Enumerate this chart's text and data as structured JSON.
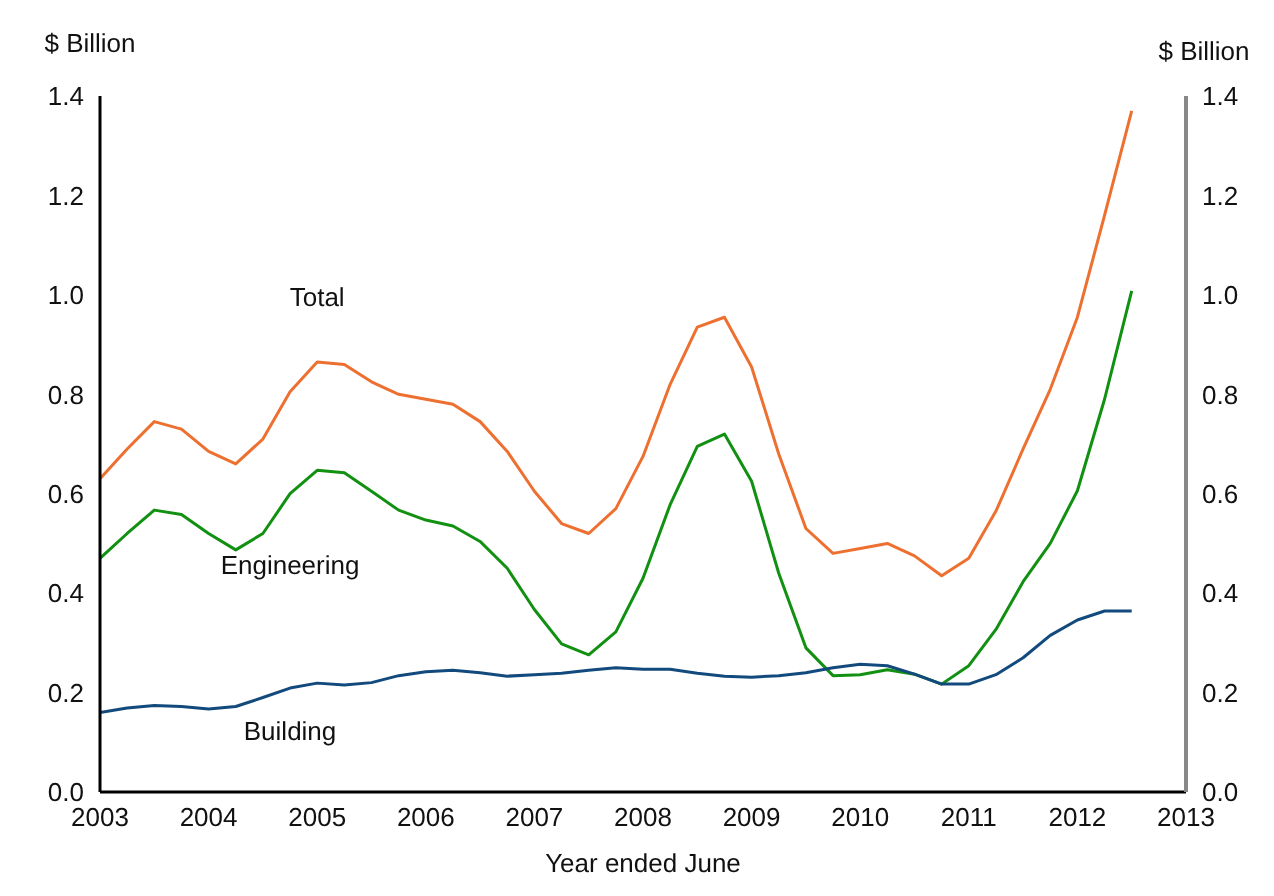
{
  "chart_data": {
    "type": "line",
    "xlabel": "Year ended June",
    "ylabel": "$ Billion",
    "y2label": "$ Billion",
    "x": [
      2003,
      2003.25,
      2003.5,
      2003.75,
      2004,
      2004.25,
      2004.5,
      2004.75,
      2005,
      2005.25,
      2005.5,
      2005.75,
      2006,
      2006.25,
      2006.5,
      2006.75,
      2007,
      2007.25,
      2007.5,
      2007.75,
      2008,
      2008.25,
      2008.5,
      2008.75,
      2009,
      2009.25,
      2009.5,
      2009.75,
      2010,
      2010.25,
      2010.5,
      2010.75,
      2011,
      2011.25,
      2011.5,
      2011.75,
      2012,
      2012.25,
      2012.5
    ],
    "series": [
      {
        "name": "Total",
        "color": "#ed7031",
        "values": [
          0.63,
          0.69,
          0.745,
          0.73,
          0.685,
          0.66,
          0.71,
          0.805,
          0.865,
          0.86,
          0.825,
          0.8,
          0.79,
          0.78,
          0.745,
          0.685,
          0.605,
          0.54,
          0.52,
          0.57,
          0.675,
          0.82,
          0.935,
          0.955,
          0.855,
          0.68,
          0.53,
          0.48,
          0.49,
          0.5,
          0.475,
          0.435,
          0.47,
          0.565,
          0.69,
          0.81,
          0.955,
          1.16,
          1.37
        ]
      },
      {
        "name": "Engineering",
        "color": "#119011",
        "values": [
          0.47,
          0.52,
          0.567,
          0.558,
          0.52,
          0.487,
          0.52,
          0.6,
          0.647,
          0.642,
          0.605,
          0.567,
          0.547,
          0.535,
          0.504,
          0.45,
          0.367,
          0.298,
          0.276,
          0.322,
          0.43,
          0.578,
          0.695,
          0.72,
          0.625,
          0.44,
          0.29,
          0.234,
          0.236,
          0.246,
          0.237,
          0.217,
          0.254,
          0.327,
          0.423,
          0.5,
          0.606,
          0.79,
          1.008
        ]
      },
      {
        "name": "Building",
        "color": "#124a7d",
        "values": [
          0.16,
          0.169,
          0.174,
          0.172,
          0.167,
          0.172,
          0.19,
          0.209,
          0.219,
          0.215,
          0.22,
          0.234,
          0.242,
          0.245,
          0.24,
          0.233,
          0.236,
          0.239,
          0.245,
          0.25,
          0.247,
          0.247,
          0.239,
          0.233,
          0.231,
          0.234,
          0.24,
          0.25,
          0.257,
          0.254,
          0.237,
          0.217,
          0.217,
          0.236,
          0.27,
          0.315,
          0.346,
          0.364,
          0.364
        ]
      }
    ],
    "xlim": [
      2003,
      2013
    ],
    "xticks": [
      2003,
      2004,
      2005,
      2006,
      2007,
      2008,
      2009,
      2010,
      2011,
      2012,
      2013
    ],
    "ylim": [
      0,
      1.4
    ],
    "yticks": [
      {
        "value": 0,
        "label": "0.0"
      },
      {
        "value": 0.2,
        "label": "0.2"
      },
      {
        "value": 0.4,
        "label": "0.4"
      },
      {
        "value": 0.6,
        "label": "0.6"
      },
      {
        "value": 0.8,
        "label": "0.8"
      },
      {
        "value": 1,
        "label": "1.0"
      },
      {
        "value": 1.2,
        "label": "1.2"
      },
      {
        "value": 1.4,
        "label": "1.4"
      }
    ],
    "y2lim": [
      0,
      1.4
    ],
    "y2ticks": [
      {
        "value": 0,
        "label": "0.0"
      },
      {
        "value": 0.2,
        "label": "0.2"
      },
      {
        "value": 0.4,
        "label": "0.4"
      },
      {
        "value": 0.6,
        "label": "0.6"
      },
      {
        "value": 0.8,
        "label": "0.8"
      },
      {
        "value": 1,
        "label": "1.0"
      },
      {
        "value": 1.2,
        "label": "1.2"
      },
      {
        "value": 1.4,
        "label": "1.4"
      }
    ],
    "grid": false,
    "legend": false,
    "marker": "none",
    "line_style": "solid"
  }
}
